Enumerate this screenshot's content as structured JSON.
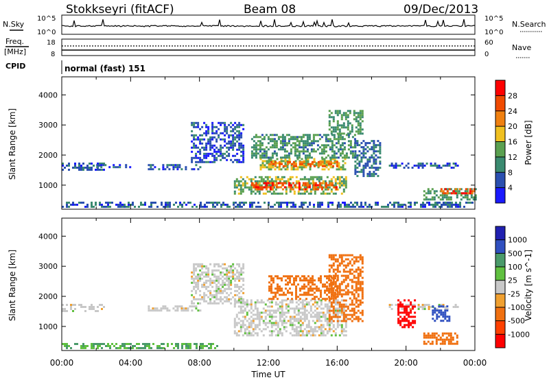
{
  "header": {
    "station": "Stokkseyri (fitACF)",
    "beam": "Beam 08",
    "date": "09/Dec/2013"
  },
  "noise_panel": {
    "left_label": "N.Sky",
    "right_label": "N.Search",
    "left_ticks": [
      "10^5",
      "10^0"
    ],
    "right_ticks": [
      "10^5",
      "10^0"
    ]
  },
  "freq_panel": {
    "left_label_top": "Freq.",
    "left_label_bottom": "[MHz]",
    "right_label": "Nave",
    "left_ticks": [
      "18",
      "8"
    ],
    "right_ticks": [
      "60",
      "0"
    ]
  },
  "cpid_panel": {
    "label": "CPID",
    "value": "normal (fast) 151"
  },
  "colors": {
    "power": [
      "#1a1aff",
      "#2a4fb0",
      "#3a8a70",
      "#5aa050",
      "#f0c020",
      "#f08010",
      "#f04a00",
      "#ff0000"
    ],
    "velocity": [
      "#2020b0",
      "#3050c0",
      "#4a9a6a",
      "#60c040",
      "#c8c8c8",
      "#f0a030",
      "#f07010",
      "#ff4000",
      "#ff0000"
    ]
  },
  "chart_data": [
    {
      "type": "heatmap",
      "title": "Power",
      "xlabel": "Time UT",
      "ylabel": "Slant Range [km]",
      "x_ticks": [
        "00:00",
        "04:00",
        "08:00",
        "12:00",
        "16:00",
        "20:00",
        "00:00"
      ],
      "x_range_hours": [
        0,
        24
      ],
      "y_ticks": [
        1000,
        2000,
        3000,
        4000
      ],
      "ylim": [
        200,
        4600
      ],
      "colorbar": {
        "label": "Power [dB]",
        "ticks": [
          4,
          8,
          12,
          16,
          20,
          24,
          28
        ],
        "range": [
          0,
          32
        ]
      },
      "echo_regions": [
        {
          "t_start": 0.0,
          "t_end": 2.5,
          "r_start": 1500,
          "r_end": 1750,
          "value": 6
        },
        {
          "t_start": 2.0,
          "t_end": 4.0,
          "r_start": 1600,
          "r_end": 1700,
          "value": 6
        },
        {
          "t_start": 5.0,
          "t_end": 8.0,
          "r_start": 1550,
          "r_end": 1700,
          "value": 7
        },
        {
          "t_start": 0.0,
          "t_end": 24.0,
          "r_start": 250,
          "r_end": 450,
          "value": 7
        },
        {
          "t_start": 7.5,
          "t_end": 10.5,
          "r_start": 1800,
          "r_end": 3100,
          "value": 6
        },
        {
          "t_start": 10.0,
          "t_end": 16.5,
          "r_start": 700,
          "r_end": 1300,
          "value": 14
        },
        {
          "t_start": 11.0,
          "t_end": 16.0,
          "r_start": 850,
          "r_end": 1100,
          "value": 26
        },
        {
          "t_start": 11.5,
          "t_end": 16.5,
          "r_start": 1500,
          "r_end": 1900,
          "value": 16
        },
        {
          "t_start": 12.0,
          "t_end": 16.0,
          "r_start": 1650,
          "r_end": 1800,
          "value": 24
        },
        {
          "t_start": 11.0,
          "t_end": 17.0,
          "r_start": 1900,
          "r_end": 2700,
          "value": 11
        },
        {
          "t_start": 15.5,
          "t_end": 17.5,
          "r_start": 2700,
          "r_end": 3500,
          "value": 12
        },
        {
          "t_start": 17.0,
          "t_end": 18.5,
          "r_start": 1300,
          "r_end": 2500,
          "value": 8
        },
        {
          "t_start": 19.0,
          "t_end": 23.0,
          "r_start": 1550,
          "r_end": 1750,
          "value": 6
        },
        {
          "t_start": 21.0,
          "t_end": 24.0,
          "r_start": 500,
          "r_end": 900,
          "value": 12
        },
        {
          "t_start": 22.0,
          "t_end": 24.0,
          "r_start": 700,
          "r_end": 900,
          "value": 26
        }
      ]
    },
    {
      "type": "heatmap",
      "title": "Velocity",
      "xlabel": "Time UT",
      "ylabel": "Slant Range [km]",
      "x_ticks": [
        "00:00",
        "04:00",
        "08:00",
        "12:00",
        "16:00",
        "20:00",
        "00:00"
      ],
      "x_range_hours": [
        0,
        24
      ],
      "y_ticks": [
        1000,
        2000,
        3000,
        4000
      ],
      "ylim": [
        200,
        4600
      ],
      "colorbar": {
        "label": "Velocity [m s^-1]",
        "ticks": [
          "1000",
          "500",
          "100",
          "25",
          "-25",
          "-100",
          "-500",
          "-1000"
        ]
      },
      "echo_regions": [
        {
          "t_start": 0.0,
          "t_end": 2.5,
          "r_start": 1500,
          "r_end": 1750,
          "value": 0
        },
        {
          "t_start": 5.0,
          "t_end": 8.0,
          "r_start": 1550,
          "r_end": 1700,
          "value": 0
        },
        {
          "t_start": 0.0,
          "t_end": 9.0,
          "r_start": 250,
          "r_end": 450,
          "value": 60
        },
        {
          "t_start": 7.5,
          "t_end": 10.5,
          "r_start": 1800,
          "r_end": 3100,
          "value": 0
        },
        {
          "t_start": 10.0,
          "t_end": 16.5,
          "r_start": 700,
          "r_end": 1900,
          "value": 0
        },
        {
          "t_start": 12.0,
          "t_end": 16.0,
          "r_start": 1900,
          "r_end": 2700,
          "value": -300
        },
        {
          "t_start": 15.5,
          "t_end": 17.5,
          "r_start": 1200,
          "r_end": 3400,
          "value": -300
        },
        {
          "t_start": 19.0,
          "t_end": 23.0,
          "r_start": 1550,
          "r_end": 1750,
          "value": 0
        },
        {
          "t_start": 19.5,
          "t_end": 20.5,
          "r_start": 1000,
          "r_end": 1900,
          "value": -800
        },
        {
          "t_start": 21.0,
          "t_end": 23.0,
          "r_start": 400,
          "r_end": 800,
          "value": -300
        },
        {
          "t_start": 21.5,
          "t_end": 22.5,
          "r_start": 1200,
          "r_end": 1700,
          "value": 300
        }
      ]
    }
  ]
}
